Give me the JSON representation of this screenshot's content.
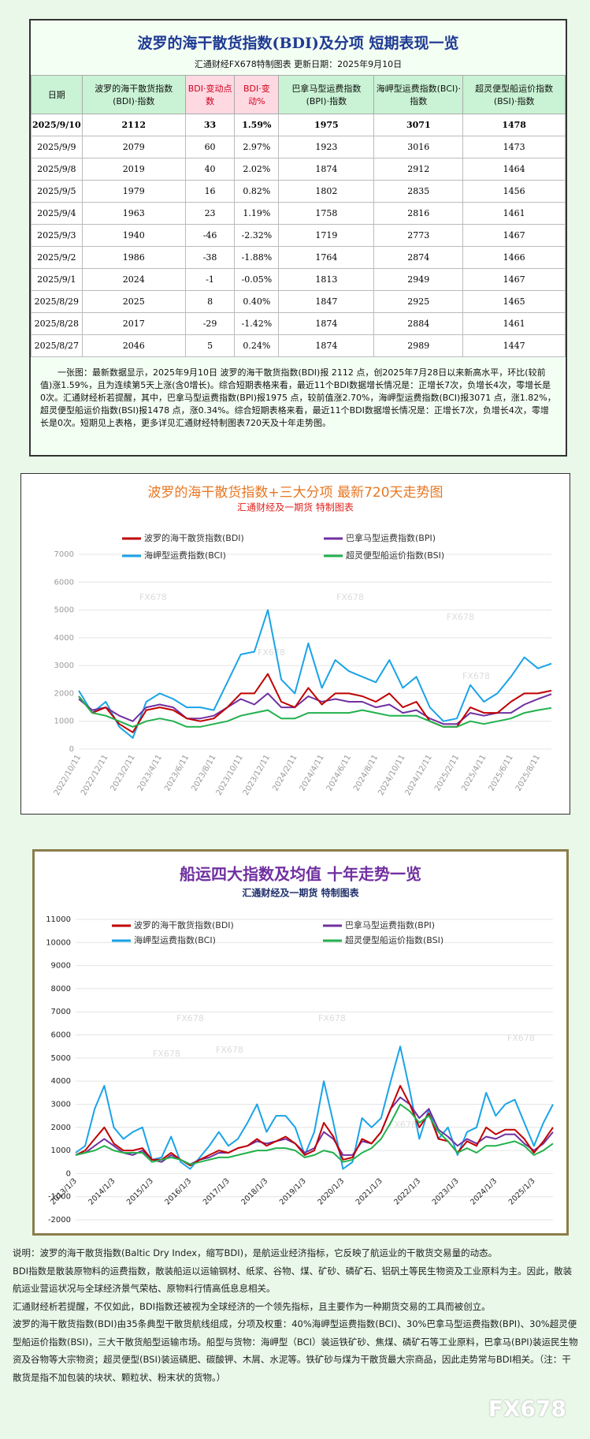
{
  "header": {
    "title": "波罗的海干散货指数(BDI)及分项  短期表现一览",
    "subtitle": "汇通财经FX678特制图表      更新日期：2025年9月10日"
  },
  "table": {
    "columns": [
      "日期",
      "波罗的海干散货指数(BDI)·指数",
      "BDI·变动点数",
      "BDI·变动%",
      "巴拿马型运费指数(BPI)·指数",
      "海岬型运费指数(BCI)·指数",
      "超灵便型船运价指数(BSI)·指数"
    ],
    "rows": [
      [
        "2025/9/10",
        "2112",
        "33",
        "1.59%",
        "1975",
        "3071",
        "1478"
      ],
      [
        "2025/9/9",
        "2079",
        "60",
        "2.97%",
        "1923",
        "3016",
        "1473"
      ],
      [
        "2025/9/8",
        "2019",
        "40",
        "2.02%",
        "1874",
        "2912",
        "1464"
      ],
      [
        "2025/9/5",
        "1979",
        "16",
        "0.82%",
        "1802",
        "2835",
        "1456"
      ],
      [
        "2025/9/4",
        "1963",
        "23",
        "1.19%",
        "1758",
        "2816",
        "1461"
      ],
      [
        "2025/9/3",
        "1940",
        "-46",
        "-2.32%",
        "1719",
        "2773",
        "1467"
      ],
      [
        "2025/9/2",
        "1986",
        "-38",
        "-1.88%",
        "1764",
        "2874",
        "1466"
      ],
      [
        "2025/9/1",
        "2024",
        "-1",
        "-0.05%",
        "1813",
        "2949",
        "1467"
      ],
      [
        "2025/8/29",
        "2025",
        "8",
        "0.40%",
        "1847",
        "2925",
        "1465"
      ],
      [
        "2025/8/28",
        "2017",
        "-29",
        "-1.42%",
        "1874",
        "2884",
        "1461"
      ],
      [
        "2025/8/27",
        "2046",
        "5",
        "0.24%",
        "1874",
        "2989",
        "1447"
      ]
    ]
  },
  "summary": "一张图：最新数据显示，2025年9月10日 波罗的海干散货指数(BDI)报 2112 点，创2025年7月28日以来新高水平，环比(较前值)涨1.59%，且为连续第5天上涨(含0增长)。综合短期表格来看，最近11个BDI数据增长情况是：正增长7次，负增长4次，零增长是0次。汇通财经析若提醒，其中，巴拿马型运费指数(BPI)报1975 点，较前值涨2.70%，海岬型运费指数(BCI)报3071 点，涨1.82%，超灵便型船运价指数(BSI)报1478 点，涨0.34%。综合短期表格来看，最近11个BDI数据增长情况是：正增长7次，负增长4次，零增长是0次。短期见上表格，更多详见汇通财经特制图表720天及十年走势图。",
  "watermark": "FX678",
  "chart_data": [
    {
      "type": "line",
      "title": "波罗的海干散货指数+三大分项  最新720天走势图",
      "subtitle": "汇通财经及一期货  特制图表",
      "categories": [
        "2022/10/11",
        null,
        "2022/12/11",
        null,
        "2023/2/11",
        null,
        "2023/4/11",
        null,
        "2023/6/11",
        null,
        "2023/8/11",
        null,
        "2023/10/11",
        null,
        "2023/12/11",
        null,
        "2024/2/11",
        null,
        "2024/4/11",
        null,
        "2024/6/11",
        null,
        "2024/8/11",
        null,
        "2024/10/11",
        null,
        "2024/12/11",
        null,
        "2025/2/11",
        null,
        "2025/4/11",
        null,
        "2025/6/11",
        null,
        "2025/8/11",
        null
      ],
      "series": [
        {
          "name": "波罗的海干散货指数(BDI)",
          "color": "#c00000",
          "values": [
            1900,
            1300,
            1500,
            900,
            600,
            1400,
            1500,
            1400,
            1100,
            1000,
            1100,
            1500,
            2000,
            2000,
            2700,
            1700,
            1500,
            2200,
            1600,
            2000,
            2000,
            1900,
            1700,
            2000,
            1500,
            1700,
            1000,
            800,
            800,
            1500,
            1300,
            1300,
            1700,
            2000,
            2000,
            2100
          ]
        },
        {
          "name": "巴拿马型运费指数(BPI)",
          "color": "#7030a0",
          "values": [
            1800,
            1400,
            1500,
            1200,
            1000,
            1500,
            1600,
            1500,
            1100,
            1100,
            1200,
            1500,
            1800,
            1600,
            2000,
            1500,
            1500,
            1900,
            1700,
            1800,
            1700,
            1700,
            1500,
            1600,
            1300,
            1400,
            1100,
            900,
            900,
            1300,
            1200,
            1300,
            1300,
            1600,
            1800,
            1975
          ]
        },
        {
          "name": "海岬型运费指数(BCI)",
          "color": "#1aa3e8",
          "values": [
            2100,
            1300,
            1700,
            800,
            400,
            1700,
            2000,
            1800,
            1500,
            1500,
            1400,
            2400,
            3400,
            3500,
            5000,
            2500,
            2000,
            3800,
            2200,
            3200,
            2800,
            2600,
            2400,
            3200,
            2200,
            2600,
            1500,
            1000,
            1100,
            2300,
            1700,
            2000,
            2600,
            3300,
            2900,
            3071
          ]
        },
        {
          "name": "超灵便型船运价指数(BSI)",
          "color": "#22b14c",
          "values": [
            1900,
            1300,
            1200,
            1000,
            800,
            1000,
            1100,
            1000,
            800,
            800,
            900,
            1000,
            1200,
            1300,
            1400,
            1100,
            1100,
            1300,
            1300,
            1300,
            1300,
            1400,
            1300,
            1200,
            1200,
            1200,
            1000,
            800,
            800,
            1000,
            900,
            1000,
            1100,
            1300,
            1400,
            1478
          ]
        }
      ],
      "ylim": [
        0,
        7000
      ],
      "yticks": [
        0,
        1000,
        2000,
        3000,
        4000,
        5000,
        6000,
        7000
      ],
      "grid": true
    },
    {
      "type": "line",
      "title": "船运四大指数及均值 十年走势一览",
      "subtitle": "汇通财经及一期货 特制图表",
      "categories": [
        "2013/1/3",
        null,
        null,
        null,
        "2014/1/3",
        null,
        null,
        null,
        "2015/1/3",
        null,
        null,
        null,
        "2016/1/3",
        null,
        null,
        null,
        "2017/1/3",
        null,
        null,
        null,
        "2018/1/3",
        null,
        null,
        null,
        "2019/1/3",
        null,
        null,
        null,
        "2020/1/3",
        null,
        null,
        null,
        "2021/1/3",
        null,
        null,
        null,
        "2022/1/3",
        null,
        null,
        null,
        "2023/1/3",
        null,
        null,
        null,
        "2024/1/3",
        null,
        null,
        null,
        "2025/1/3",
        null,
        null
      ],
      "series": [
        {
          "name": "波罗的海干散货指数(BDI)",
          "color": "#c00000",
          "values": [
            800,
            1000,
            1500,
            2000,
            1300,
            1000,
            1000,
            1100,
            600,
            600,
            900,
            600,
            350,
            600,
            800,
            1000,
            900,
            1100,
            1200,
            1500,
            1200,
            1400,
            1600,
            1300,
            800,
            1000,
            2200,
            1600,
            600,
            700,
            1500,
            1300,
            1800,
            2800,
            3800,
            3000,
            2000,
            2600,
            1500,
            1400,
            900,
            1400,
            1200,
            2000,
            1700,
            1900,
            1900,
            1500,
            900,
            1400,
            2000
          ]
        },
        {
          "name": "巴拿马型运费指数(BPI)",
          "color": "#7030a0",
          "values": [
            800,
            900,
            1200,
            1500,
            1200,
            900,
            800,
            1000,
            600,
            500,
            800,
            600,
            400,
            600,
            700,
            900,
            900,
            1100,
            1200,
            1400,
            1300,
            1400,
            1500,
            1300,
            900,
            1100,
            1800,
            1500,
            800,
            800,
            1400,
            1300,
            1800,
            2800,
            3300,
            3000,
            2400,
            2800,
            1900,
            1600,
            1200,
            1500,
            1300,
            1600,
            1500,
            1700,
            1700,
            1300,
            1000,
            1300,
            1800
          ]
        },
        {
          "name": "海岬型运费指数(BCI)",
          "color": "#1aa3e8",
          "values": [
            900,
            1200,
            2800,
            3800,
            2000,
            1500,
            1800,
            2000,
            600,
            700,
            1600,
            500,
            200,
            700,
            1200,
            1800,
            1200,
            1500,
            2200,
            3000,
            1800,
            2500,
            2500,
            2000,
            800,
            1800,
            4000,
            2200,
            200,
            500,
            2400,
            2000,
            2400,
            4000,
            5500,
            3600,
            1500,
            2800,
            1500,
            2000,
            800,
            1800,
            2000,
            3500,
            2500,
            3000,
            3200,
            2200,
            1200,
            2200,
            3000
          ]
        },
        {
          "name": "超灵便型船运价指数(BSI)",
          "color": "#22b14c",
          "values": [
            800,
            900,
            1000,
            1200,
            1000,
            900,
            900,
            900,
            500,
            600,
            700,
            600,
            400,
            500,
            600,
            700,
            700,
            800,
            900,
            1000,
            1000,
            1100,
            1100,
            1000,
            700,
            800,
            1000,
            900,
            500,
            600,
            900,
            1100,
            1500,
            2200,
            3000,
            2700,
            2200,
            2500,
            1800,
            1400,
            900,
            1100,
            900,
            1200,
            1200,
            1300,
            1400,
            1200,
            800,
            1000,
            1300
          ]
        }
      ],
      "ylim": [
        -2000,
        11000
      ],
      "yticks": [
        -2000,
        -1000,
        0,
        1000,
        2000,
        3000,
        4000,
        5000,
        6000,
        7000,
        8000,
        9000,
        10000,
        11000
      ],
      "grid": true
    }
  ],
  "notes": [
    "说明：波罗的海干散货指数(Baltic Dry Index，缩写BDI)，是航运业经济指标，它反映了航运业的干散货交易量的动态。",
    "BDI指数是散装原物料的运费指数，散装船运以运输钢材、纸浆、谷物、煤、矿砂、磷矿石、铝矾土等民生物资及工业原料为主。因此，散装航运业营运状况与全球经济景气荣枯、原物料行情高低息息相关。",
    "汇通财经析若提醒，不仅如此，BDI指数还被视为全球经济的一个领先指标，且主要作为一种期货交易的工具而被创立。",
    "波罗的海干散货指数(BDI)由35条典型干散货航线组成，分项及权重：40%海岬型运费指数(BCI)、30%巴拿马型运费指数(BPI)、30%超灵便型船运价指数(BSI)，三大干散货船型运输市场。船型与货物：海岬型（BCI）装运铁矿砂、焦煤、磷矿石等工业原料，巴拿马(BPI)装运民生物资及谷物等大宗物资；超灵便型(BSI)装运磷肥、碳酸钾、木屑、水泥等。铁矿砂与煤为干散货最大宗商品，因此走势常与BDI相关。（注：干散货是指不加包装的块状、颗粒状、粉末状的货物。）"
  ]
}
